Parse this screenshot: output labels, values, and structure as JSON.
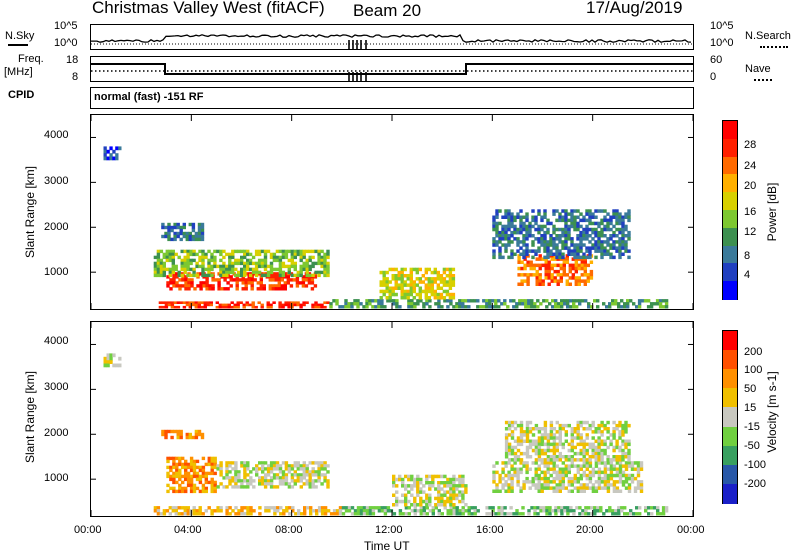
{
  "header": {
    "radar": "Christmas Valley West (fitACF)",
    "beam": "Beam 20",
    "date": "17/Aug/2019"
  },
  "small_panels": {
    "nsky_label": "N.Sky",
    "nsky_ticks": [
      "10^5",
      "10^0"
    ],
    "nsearch_label": "N.Search",
    "nsearch_ticks": [
      "10^5",
      "10^0"
    ],
    "freq_label": "Freq.",
    "freq_unit": "[MHz]",
    "freq_ticks": [
      "18",
      "8"
    ],
    "nave_label": "Nave",
    "nave_ticks": [
      "60",
      "0"
    ],
    "cpid_label": "CPID",
    "cpid_text": "normal (fast) -151 RF"
  },
  "chart_data": [
    {
      "type": "heatmap",
      "name": "power",
      "ylabel": "Slant Range [km]",
      "xlabel": "",
      "x_ticks": [
        "00:00",
        "04:00",
        "08:00",
        "12:00",
        "16:00",
        "20:00",
        "00:00"
      ],
      "y_ticks": [
        1000,
        2000,
        3000,
        4000
      ],
      "ylim": [
        180,
        4500
      ],
      "xlim_hours": [
        0,
        24
      ],
      "colorbar": {
        "label": "Power [dB]",
        "ticks": [
          "28",
          "24",
          "20",
          "16",
          "12",
          "8",
          "4"
        ],
        "colors": [
          "#0000ff",
          "#2040c0",
          "#3a7a9a",
          "#3c9050",
          "#7dc830",
          "#d8d000",
          "#ffb000",
          "#ff6a00",
          "#ff2000",
          "#ff0000"
        ]
      },
      "echo_regions": [
        {
          "t0": 0.5,
          "t1": 1.2,
          "r0": 3500,
          "r1": 3800,
          "level": 1
        },
        {
          "t0": 2.7,
          "t1": 9.5,
          "r0": 200,
          "r1": 350,
          "level": 8
        },
        {
          "t0": 3.0,
          "t1": 9.0,
          "r0": 600,
          "r1": 1000,
          "level": 8
        },
        {
          "t0": 2.5,
          "t1": 9.5,
          "r0": 900,
          "r1": 1500,
          "level": 4
        },
        {
          "t0": 2.8,
          "t1": 4.5,
          "r0": 1700,
          "r1": 2100,
          "level": 2
        },
        {
          "t0": 9.5,
          "t1": 23.0,
          "r0": 200,
          "r1": 400,
          "level": 3
        },
        {
          "t0": 11.5,
          "t1": 14.5,
          "r0": 400,
          "r1": 1100,
          "level": 5
        },
        {
          "t0": 17.0,
          "t1": 20.0,
          "r0": 700,
          "r1": 1400,
          "level": 7
        },
        {
          "t0": 16.0,
          "t1": 21.5,
          "r0": 1300,
          "r1": 2400,
          "level": 2
        }
      ]
    },
    {
      "type": "heatmap",
      "name": "velocity",
      "ylabel": "Slant Range [km]",
      "xlabel": "Time UT",
      "x_ticks": [
        "00:00",
        "04:00",
        "08:00",
        "12:00",
        "16:00",
        "20:00",
        "00:00"
      ],
      "y_ticks": [
        1000,
        2000,
        3000,
        4000
      ],
      "ylim": [
        180,
        4500
      ],
      "xlim_hours": [
        0,
        24
      ],
      "colorbar": {
        "label": "Velocity [m s-1]",
        "ticks": [
          "200",
          "100",
          "50",
          "15",
          "-15",
          "-50",
          "-100",
          "-200"
        ],
        "colors": [
          "#1a20c8",
          "#2858a8",
          "#38a060",
          "#70d040",
          "#c8c8c0",
          "#f0c000",
          "#ff9000",
          "#ff5000",
          "#ff0000"
        ]
      },
      "echo_regions": [
        {
          "t0": 0.5,
          "t1": 1.2,
          "r0": 3500,
          "r1": 3800,
          "level": 4
        },
        {
          "t0": 3.0,
          "t1": 5.0,
          "r0": 700,
          "r1": 1500,
          "level": 6
        },
        {
          "t0": 2.8,
          "t1": 4.5,
          "r0": 1900,
          "r1": 2100,
          "level": 6
        },
        {
          "t0": 5.0,
          "t1": 9.5,
          "r0": 800,
          "r1": 1400,
          "level": 4
        },
        {
          "t0": 2.5,
          "t1": 10.0,
          "r0": 200,
          "r1": 400,
          "level": 5
        },
        {
          "t0": 10.0,
          "t1": 23.0,
          "r0": 200,
          "r1": 400,
          "level": 3
        },
        {
          "t0": 12.0,
          "t1": 15.0,
          "r0": 400,
          "r1": 1100,
          "level": 4
        },
        {
          "t0": 16.0,
          "t1": 22.0,
          "r0": 700,
          "r1": 1400,
          "level": 4
        },
        {
          "t0": 16.5,
          "t1": 21.5,
          "r0": 1400,
          "r1": 2300,
          "level": 4
        }
      ]
    }
  ]
}
